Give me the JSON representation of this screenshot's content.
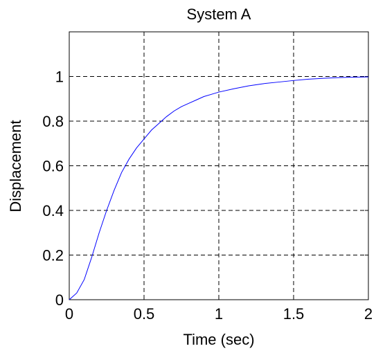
{
  "chart_data": {
    "type": "line",
    "title": "System A",
    "xlabel": "Time (sec)",
    "ylabel": "Displacement",
    "xlim": [
      0,
      2
    ],
    "ylim": [
      0,
      1.2
    ],
    "x_ticks": [
      {
        "value": 0,
        "label": "0"
      },
      {
        "value": 0.5,
        "label": "0.5"
      },
      {
        "value": 1,
        "label": "1"
      },
      {
        "value": 1.5,
        "label": "1.5"
      },
      {
        "value": 2,
        "label": "2"
      }
    ],
    "y_ticks": [
      {
        "value": 0,
        "label": "0"
      },
      {
        "value": 0.2,
        "label": "0.2"
      },
      {
        "value": 0.4,
        "label": "0.4"
      },
      {
        "value": 0.6,
        "label": "0.6"
      },
      {
        "value": 0.8,
        "label": "0.8"
      },
      {
        "value": 1,
        "label": "1"
      }
    ],
    "grid": true,
    "grid_style": "dashed",
    "line_color": "#0000ff",
    "series": [
      {
        "x": [
          0,
          0.05,
          0.1,
          0.15,
          0.2,
          0.25,
          0.3,
          0.35,
          0.4,
          0.45,
          0.5,
          0.55,
          0.6,
          0.65,
          0.7,
          0.75,
          0.8,
          0.85,
          0.9,
          0.95,
          1.0,
          1.1,
          1.2,
          1.3,
          1.4,
          1.5,
          1.6,
          1.7,
          1.8,
          1.9,
          2.0
        ],
        "values": [
          0,
          0.03,
          0.09,
          0.19,
          0.3,
          0.4,
          0.49,
          0.57,
          0.63,
          0.68,
          0.72,
          0.76,
          0.79,
          0.82,
          0.845,
          0.865,
          0.88,
          0.895,
          0.91,
          0.92,
          0.93,
          0.945,
          0.958,
          0.968,
          0.975,
          0.982,
          0.988,
          0.992,
          0.995,
          0.997,
          0.998
        ]
      }
    ]
  }
}
